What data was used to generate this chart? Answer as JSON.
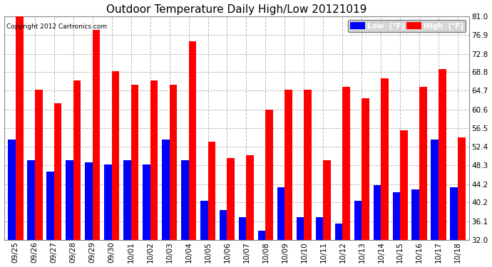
{
  "title": "Outdoor Temperature Daily High/Low 20121019",
  "copyright_text": "Copyright 2012 Cartronics.com",
  "dates": [
    "09/25",
    "09/26",
    "09/27",
    "09/28",
    "09/29",
    "09/30",
    "10/01",
    "10/02",
    "10/03",
    "10/04",
    "10/05",
    "10/06",
    "10/07",
    "10/08",
    "10/09",
    "10/10",
    "10/11",
    "10/12",
    "10/13",
    "10/14",
    "10/15",
    "10/16",
    "10/17",
    "10/18"
  ],
  "high": [
    81.0,
    65.0,
    62.0,
    67.0,
    78.0,
    69.0,
    66.0,
    67.0,
    66.0,
    75.5,
    53.5,
    50.0,
    50.5,
    60.5,
    65.0,
    65.0,
    49.5,
    65.5,
    63.0,
    67.5,
    56.0,
    65.5,
    69.5,
    54.5
  ],
  "low": [
    54.0,
    49.5,
    47.0,
    49.5,
    49.0,
    48.5,
    49.5,
    48.5,
    54.0,
    49.5,
    40.5,
    38.5,
    37.0,
    34.0,
    43.5,
    37.0,
    37.0,
    35.5,
    40.5,
    44.0,
    42.5,
    43.0,
    54.0,
    43.5
  ],
  "high_color": "#ff0000",
  "low_color": "#0000ff",
  "bg_color": "#ffffff",
  "plot_bg_color": "#ffffff",
  "grid_color": "#bbbbbb",
  "title_fontsize": 11,
  "tick_fontsize": 7.5,
  "ylim_min": 32.0,
  "ylim_max": 81.0,
  "yticks": [
    32.0,
    36.1,
    40.2,
    44.2,
    48.3,
    52.4,
    56.5,
    60.6,
    64.7,
    68.8,
    72.8,
    76.9,
    81.0
  ],
  "legend_low_label": "Low  (°F)",
  "legend_high_label": "High  (°F)"
}
